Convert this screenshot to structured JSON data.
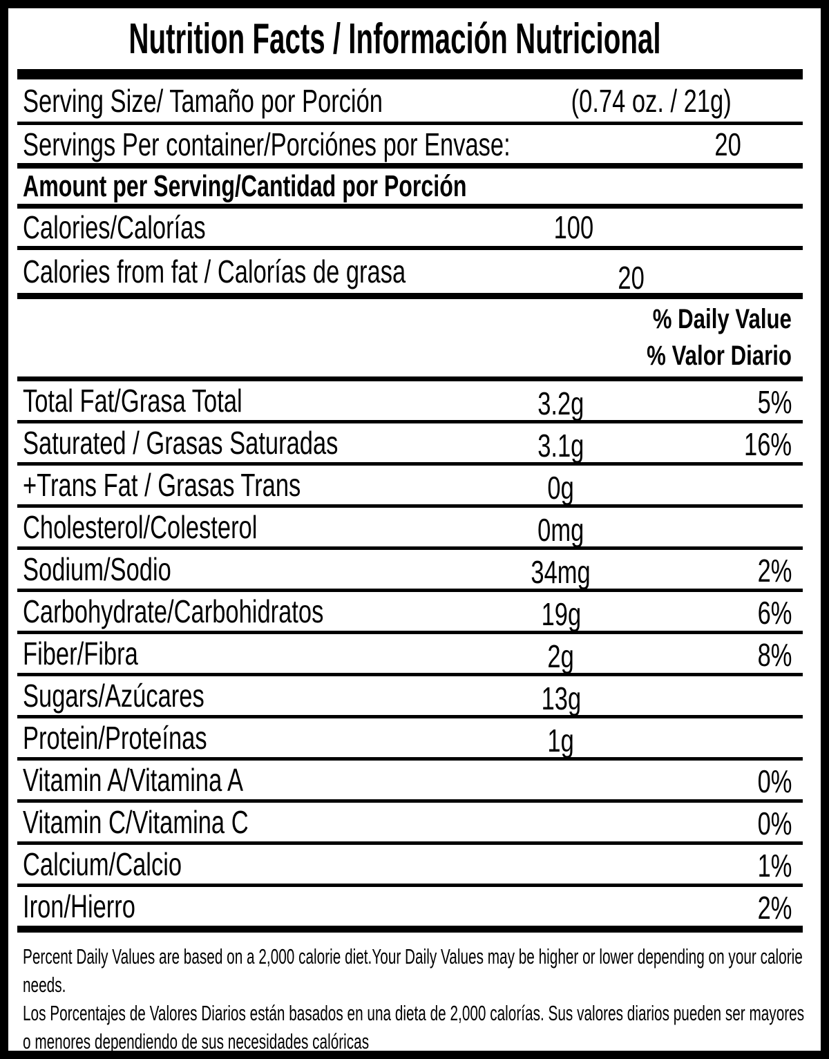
{
  "label": {
    "title": "Nutrition Facts / Información Nutricional",
    "serving": {
      "size_label": "Serving Size/ Tamaño por Porción",
      "size_value": "(0.74 oz. / 21g)",
      "per_container_label": "Servings Per container/Porciónes por Envase:",
      "per_container_value": "20"
    },
    "amount_heading": "Amount per Serving/Cantidad por Porción",
    "calories": {
      "label": "Calories/Calorías",
      "value": "100"
    },
    "calories_from_fat": {
      "label": "Calories from fat / Calorías de grasa",
      "value": "20"
    },
    "daily_value_heading_en": "% Daily Value",
    "daily_value_heading_es": "% Valor Diario",
    "nutrients": [
      {
        "label": "Total Fat/Grasa Total",
        "amount": "3.2g",
        "dv": "5%"
      },
      {
        "label": "Saturated / Grasas Saturadas",
        "amount": "3.1g",
        "dv": "16%"
      },
      {
        "label": "+Trans Fat / Grasas Trans",
        "amount": "0g",
        "dv": ""
      },
      {
        "label": "Cholesterol/Colesterol",
        "amount": "0mg",
        "dv": ""
      },
      {
        "label": "Sodium/Sodio",
        "amount": "34mg",
        "dv": "2%"
      },
      {
        "label": "Carbohydrate/Carbohidratos",
        "amount": "19g",
        "dv": "6%"
      },
      {
        "label": "Fiber/Fibra",
        "amount": "2g",
        "dv": "8%"
      },
      {
        "label": "Sugars/Azúcares",
        "amount": "13g",
        "dv": ""
      },
      {
        "label": "Protein/Proteínas",
        "amount": "1g",
        "dv": ""
      },
      {
        "label": "Vitamin A/Vitamina A",
        "amount": "",
        "dv": "0%"
      },
      {
        "label": "Vitamin C/Vitamina C",
        "amount": "",
        "dv": "0%"
      },
      {
        "label": "Calcium/Calcio",
        "amount": "",
        "dv": "1%"
      },
      {
        "label": "Iron/Hierro",
        "amount": "",
        "dv": "2%"
      }
    ],
    "footnotes": [
      "Percent Daily Values are based on a 2,000 calorie diet.Your Daily Values may be higher or lower depending on your calorie needs.",
      "Los Porcentajes de Valores Diarios están basados en una dieta de 2,000 calorías. Sus valores diarios pueden ser mayores o menores dependiendo de sus necesidades calóricas"
    ],
    "colors": {
      "ink": "#000000",
      "background": "#ffffff"
    }
  }
}
